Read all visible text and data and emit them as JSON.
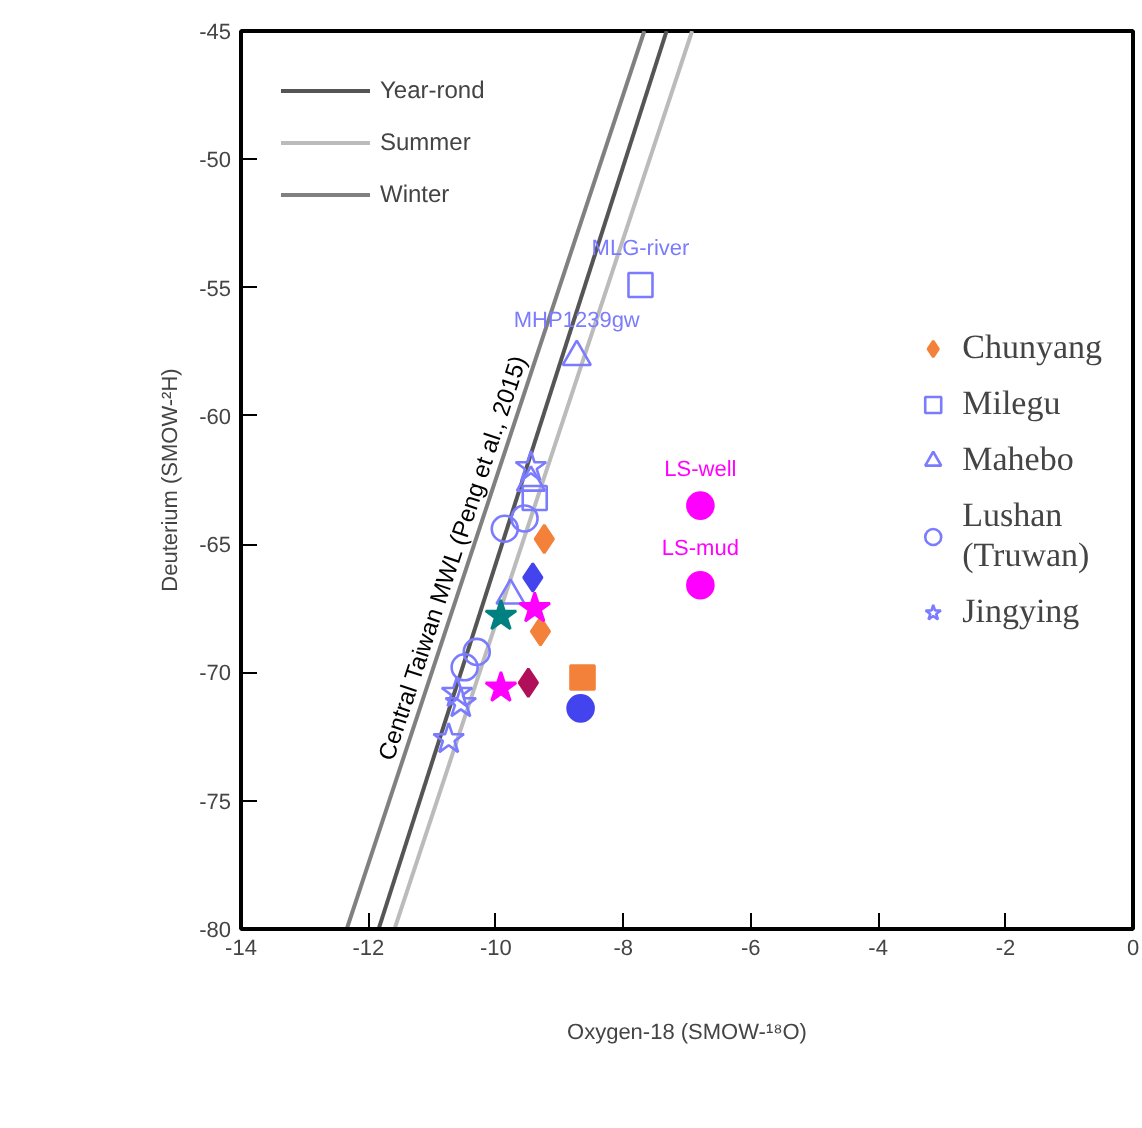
{
  "chart_data": {
    "type": "scatter",
    "xlabel": "Oxygen-18 (SMOW-¹⁸O)",
    "ylabel": "Deuterium (SMOW-²H)",
    "xlim": [
      -14,
      0
    ],
    "ylim": [
      -80,
      -45
    ],
    "xticks": [
      -14,
      -12,
      -10,
      -8,
      -6,
      -4,
      -2,
      0
    ],
    "yticks": [
      -80,
      -75,
      -70,
      -65,
      -60,
      -55,
      -50,
      -45
    ],
    "grid": false,
    "legend": "top left",
    "series": [
      {
        "name": "Year-rond",
        "type": "line",
        "color": "#555555",
        "x": [
          -11.84,
          -7.32
        ],
        "values": [
          -80,
          -45
        ]
      },
      {
        "name": "Summer",
        "type": "line",
        "color": "#bbbbbb",
        "x": [
          -11.59,
          -6.92
        ],
        "values": [
          -80,
          -45
        ]
      },
      {
        "name": "Winter",
        "type": "line",
        "color": "#808080",
        "x": [
          -12.34,
          -7.67
        ],
        "values": [
          -80,
          -45
        ]
      },
      {
        "name": "Chunyang",
        "marker": "diamond",
        "x": [
          -9.24,
          -9.42,
          -9.3,
          -9.49
        ],
        "values": [
          -64.8,
          -66.3,
          -68.4,
          -70.4
        ],
        "colors": [
          "#f4813a",
          "#4444ee",
          "#f4813a",
          "#b0105a"
        ]
      },
      {
        "name": "Milegu",
        "marker": "square",
        "x": [
          -7.73,
          -9.39
        ],
        "values": [
          -54.9,
          -63.2
        ],
        "color": "#7b7bff"
      },
      {
        "marker": "square",
        "x": [
          -8.64
        ],
        "values": [
          -70.2
        ],
        "colors": [
          "#f4813a"
        ]
      },
      {
        "name": "Mahebo",
        "marker": "triangle",
        "x": [
          -8.73,
          -9.45,
          -9.77
        ],
        "values": [
          -57.7,
          -62.6,
          -67.0
        ],
        "color": "#7b7bff"
      },
      {
        "name": "Lushan\n(Truwan)",
        "marker": "circle",
        "x": [
          -9.86,
          -9.55,
          -10.3,
          -10.49
        ],
        "values": [
          -64.4,
          -64.0,
          -69.2,
          -69.8
        ],
        "color": "#7b7bff"
      },
      {
        "marker": "circle",
        "x": [
          -6.79,
          -6.79,
          -8.67
        ],
        "values": [
          -63.5,
          -66.6,
          -71.4
        ],
        "colors": [
          "#ff00ff",
          "#ff00ff",
          "#4444ee"
        ]
      },
      {
        "name": "Jingying",
        "marker": "star",
        "x": [
          -9.45,
          -10.61,
          -10.55,
          -10.74
        ],
        "values": [
          -62.0,
          -70.8,
          -71.2,
          -72.6
        ],
        "color": "#7b7bff"
      },
      {
        "marker": "star",
        "x": [
          -9.39,
          -9.92,
          -9.92
        ],
        "values": [
          -67.5,
          -67.8,
          -70.6
        ],
        "colors": [
          "#ff00ff",
          "#008080",
          "#ff00ff"
        ]
      }
    ],
    "annotations": [
      {
        "text": "MLG-river",
        "x": -7.73,
        "y": -54.9
      },
      {
        "text": "MHP1239gw",
        "x": -8.73,
        "y": -57.7
      },
      {
        "text": "LS-well",
        "x": -6.79,
        "y": -63.5
      },
      {
        "text": "LS-mud",
        "x": -6.79,
        "y": -66.6
      },
      "Central Taiwan MWL (Peng et al., 2015)"
    ]
  }
}
